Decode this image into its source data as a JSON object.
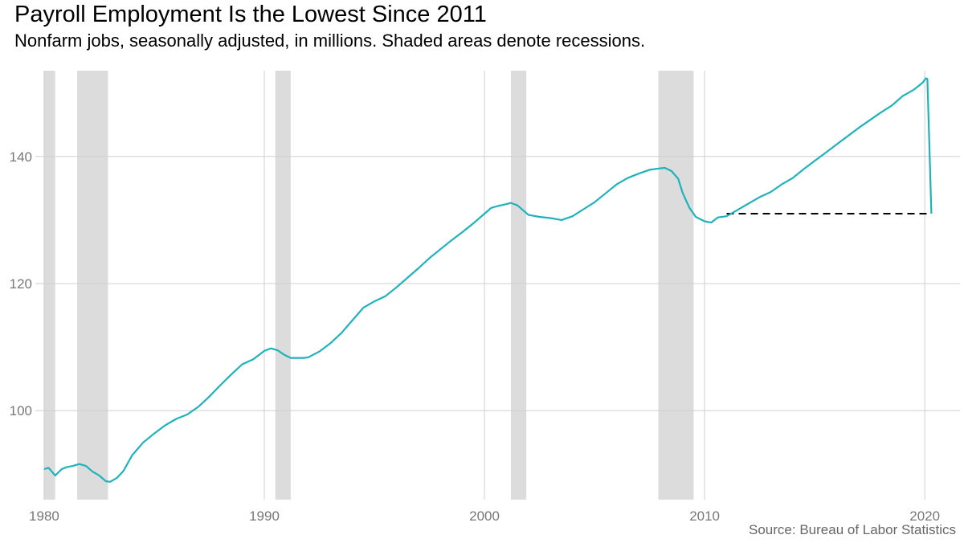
{
  "title": "Payroll Employment Is the Lowest Since 2011",
  "subtitle": "Nonfarm jobs, seasonally adjusted, in millions. Shaded areas denote recessions.",
  "source": "Source: Bureau of Labor Statistics",
  "chart_data": {
    "type": "line",
    "title": "Payroll Employment Is the Lowest Since 2011",
    "subtitle": "Nonfarm jobs, seasonally adjusted, in millions. Shaded areas denote recessions.",
    "xlabel": "",
    "ylabel": "",
    "xlim": [
      1979.6,
      2021.6
    ],
    "ylim": [
      86,
      153.5
    ],
    "x_ticks": [
      1980,
      1990,
      2000,
      2010,
      2020
    ],
    "y_ticks": [
      100,
      120,
      140
    ],
    "grid": true,
    "legend": "none",
    "line_color": "#1eb3bb",
    "recession_color": "#dcdcdc",
    "recessions": [
      {
        "start": 1980.0,
        "end": 1980.5
      },
      {
        "start": 1981.5,
        "end": 1982.9
      },
      {
        "start": 1990.5,
        "end": 1991.2
      },
      {
        "start": 2001.2,
        "end": 2001.9
      },
      {
        "start": 2007.9,
        "end": 2009.5
      }
    ],
    "reference_line": {
      "x_start": 2011.0,
      "x_end": 2020.3,
      "y": 131.0,
      "style": "dashed",
      "color": "#000000"
    },
    "series": [
      {
        "x": [
          1980.0,
          1980.2,
          1980.5,
          1980.8,
          1981.0,
          1981.3,
          1981.6,
          1981.9,
          1982.2,
          1982.5,
          1982.8,
          1983.0,
          1983.3,
          1983.6,
          1984.0,
          1984.5,
          1985.0,
          1985.5,
          1986.0,
          1986.5,
          1987.0,
          1987.5,
          1988.0,
          1988.5,
          1989.0,
          1989.5,
          1990.0,
          1990.3,
          1990.6,
          1990.9,
          1991.2,
          1991.5,
          1991.8,
          1992.0,
          1992.5,
          1993.0,
          1993.5,
          1994.0,
          1994.5,
          1995.0,
          1995.5,
          1996.0,
          1996.5,
          1997.0,
          1997.5,
          1998.0,
          1998.5,
          1999.0,
          1999.5,
          2000.0,
          2000.3,
          2000.6,
          2001.0,
          2001.2,
          2001.5,
          2001.8,
          2002.0,
          2002.5,
          2003.0,
          2003.5,
          2004.0,
          2004.5,
          2005.0,
          2005.5,
          2006.0,
          2006.5,
          2007.0,
          2007.5,
          2007.9,
          2008.2,
          2008.5,
          2008.8,
          2009.0,
          2009.3,
          2009.6,
          2010.0,
          2010.3,
          2010.6,
          2011.0,
          2011.5,
          2012.0,
          2012.5,
          2013.0,
          2013.5,
          2014.0,
          2014.5,
          2015.0,
          2015.5,
          2016.0,
          2016.5,
          2017.0,
          2017.5,
          2018.0,
          2018.5,
          2019.0,
          2019.5,
          2019.9,
          2020.05,
          2020.12,
          2020.2,
          2020.3
        ],
        "values": [
          90.8,
          91.0,
          89.8,
          90.8,
          91.1,
          91.3,
          91.6,
          91.3,
          90.4,
          89.8,
          88.9,
          88.8,
          89.4,
          90.5,
          93.0,
          95.0,
          96.4,
          97.7,
          98.7,
          99.4,
          100.6,
          102.2,
          104.0,
          105.7,
          107.3,
          108.1,
          109.4,
          109.8,
          109.5,
          108.8,
          108.3,
          108.3,
          108.3,
          108.4,
          109.3,
          110.6,
          112.2,
          114.2,
          116.2,
          117.2,
          118.0,
          119.4,
          120.9,
          122.4,
          124.0,
          125.4,
          126.8,
          128.1,
          129.5,
          131.0,
          131.9,
          132.2,
          132.5,
          132.7,
          132.3,
          131.4,
          130.8,
          130.5,
          130.3,
          130.0,
          130.6,
          131.7,
          132.8,
          134.2,
          135.6,
          136.6,
          137.3,
          137.9,
          138.1,
          138.2,
          137.7,
          136.5,
          134.3,
          132.0,
          130.5,
          129.8,
          129.6,
          130.4,
          130.6,
          131.6,
          132.6,
          133.6,
          134.4,
          135.6,
          136.6,
          138.0,
          139.3,
          140.6,
          141.9,
          143.2,
          144.5,
          145.7,
          146.9,
          148.0,
          149.5,
          150.5,
          151.6,
          152.3,
          152.2,
          143.0,
          131.0
        ]
      }
    ]
  }
}
